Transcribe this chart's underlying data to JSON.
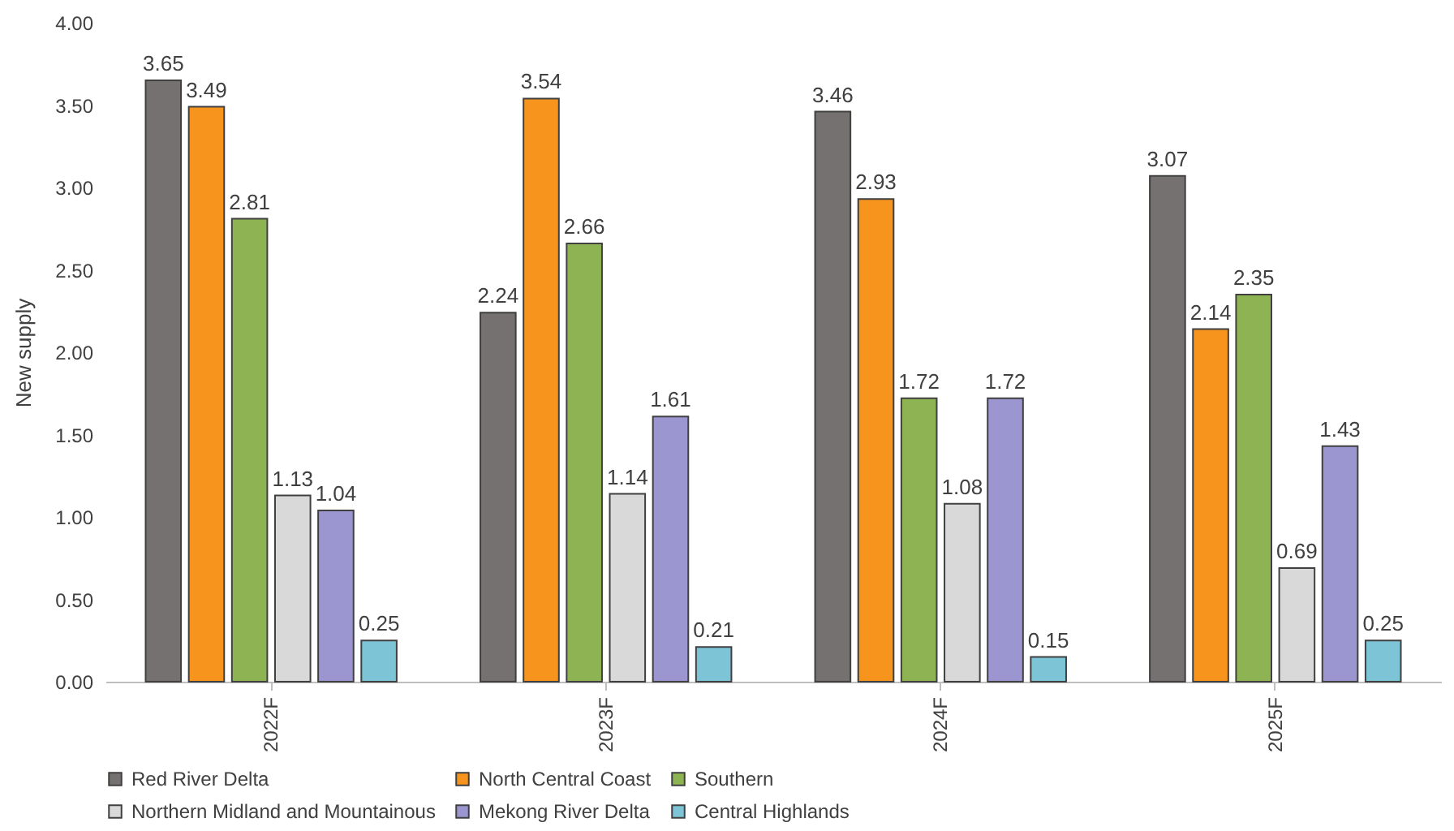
{
  "chart_data": {
    "type": "bar",
    "ylabel": "New supply",
    "categories": [
      "2022F",
      "2023F",
      "2024F",
      "2025F"
    ],
    "series": [
      {
        "name": "Red River Delta",
        "color": "#767171",
        "values": [
          3.65,
          2.24,
          3.46,
          3.07
        ]
      },
      {
        "name": "North Central Coast",
        "color": "#f7941d",
        "values": [
          3.49,
          3.54,
          2.93,
          2.14
        ]
      },
      {
        "name": "Southern",
        "color": "#8db352",
        "values": [
          2.81,
          2.66,
          1.72,
          2.35
        ]
      },
      {
        "name": "Northern Midland and Mountainous",
        "color": "#d9d9d9",
        "values": [
          1.13,
          1.14,
          1.08,
          0.69
        ]
      },
      {
        "name": "Mekong River Delta",
        "color": "#9b96d0",
        "values": [
          1.04,
          1.61,
          1.72,
          1.43
        ]
      },
      {
        "name": "Central Highlands",
        "color": "#7cc4d6",
        "values": [
          0.25,
          0.21,
          0.15,
          0.25
        ]
      }
    ],
    "ylim": [
      0,
      4
    ],
    "yticks": [
      {
        "value": 0,
        "label": "0.00"
      },
      {
        "value": 0.5,
        "label": "0.50"
      },
      {
        "value": 1,
        "label": "1.00"
      },
      {
        "value": 1.5,
        "label": "1.50"
      },
      {
        "value": 2,
        "label": "2.00"
      },
      {
        "value": 2.5,
        "label": "2.50"
      },
      {
        "value": 3,
        "label": "3.00"
      },
      {
        "value": 3.5,
        "label": "3.50"
      },
      {
        "value": 4,
        "label": "4.00"
      }
    ],
    "grid": false,
    "legend": "bottom",
    "data_labels": true
  }
}
